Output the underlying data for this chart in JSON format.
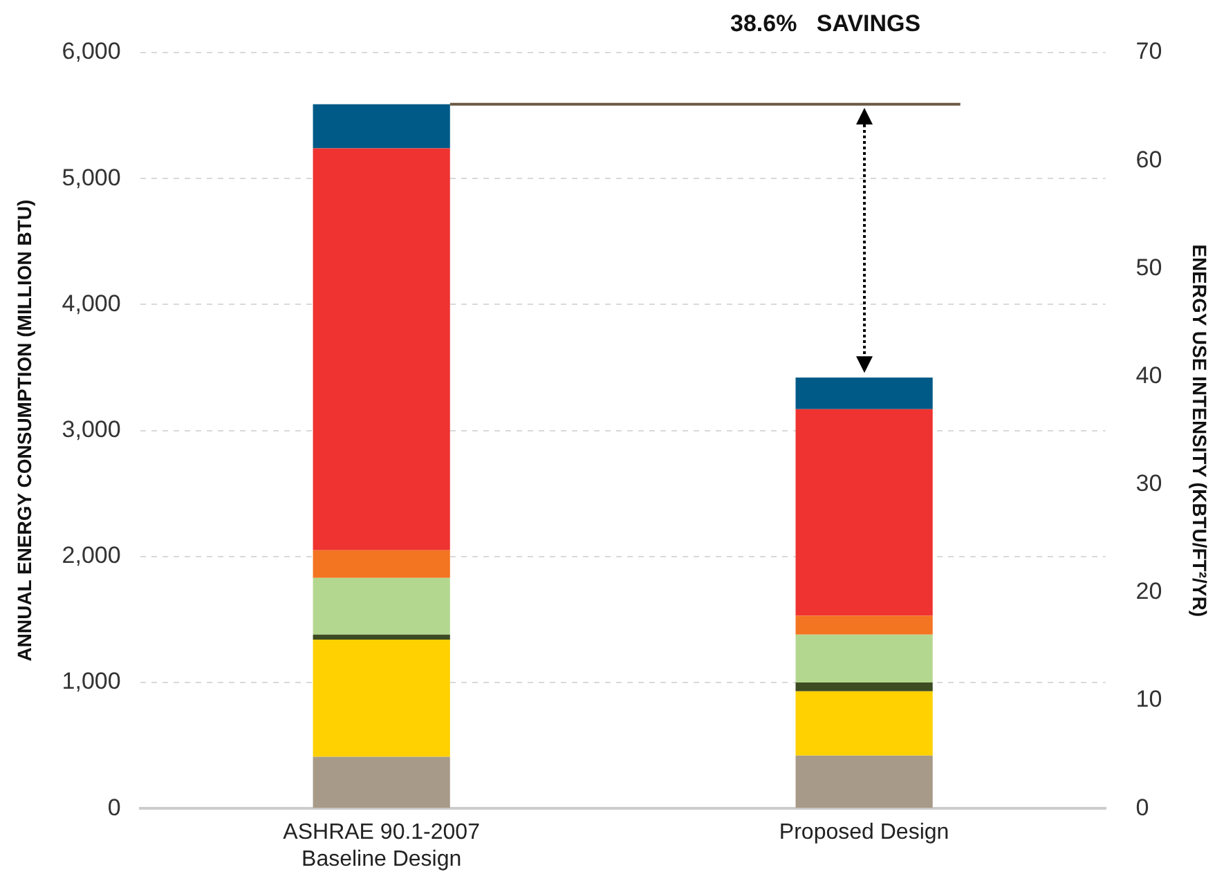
{
  "chart_data": {
    "type": "bar",
    "stacked": true,
    "categories": [
      "ASHRAE 90.1-2007\nBaseline Design",
      "Proposed Design"
    ],
    "series": [
      {
        "color": "#a89a88",
        "values": [
          410,
          420
        ]
      },
      {
        "color": "#ffd100",
        "values": [
          930,
          510
        ]
      },
      {
        "color": "#3d4b23",
        "values": [
          40,
          70
        ]
      },
      {
        "color": "#b3d78f",
        "values": [
          450,
          380
        ]
      },
      {
        "color": "#f37421",
        "values": [
          220,
          150
        ]
      },
      {
        "color": "#ee3330",
        "values": [
          3190,
          1640
        ]
      },
      {
        "color": "#005a87",
        "values": [
          350,
          250
        ]
      }
    ],
    "ylabel": "ANNUAL ENERGY CONSUMPTION (MILLION BTU)",
    "y2label": "ENERGY USE INTENSITY (KBTU/FT²/YR)",
    "ylim": [
      0,
      6000
    ],
    "yticks": [
      0,
      {
        "value": 1000,
        "label": "1,000"
      },
      {
        "value": 2000,
        "label": "2,000"
      },
      {
        "value": 3000,
        "label": "3,000"
      },
      {
        "value": 4000,
        "label": "4,000"
      },
      {
        "value": 5000,
        "label": "5,000"
      },
      {
        "value": 6000,
        "label": "6,000"
      }
    ],
    "y2lim": [
      0,
      70
    ],
    "y2ticks": [
      0,
      10,
      20,
      30,
      40,
      50,
      60,
      70
    ],
    "ref_lines": [
      {
        "axis": "y",
        "value": 5590,
        "color": "#6b5a45"
      }
    ],
    "annotations": [
      "38.6%   SAVINGS"
    ],
    "grid": "y",
    "legend": false
  }
}
